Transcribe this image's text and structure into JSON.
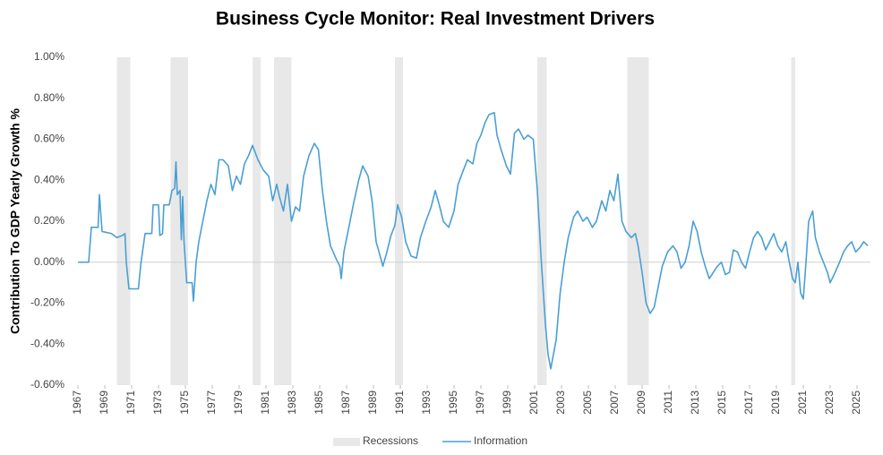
{
  "chart_data": {
    "type": "line",
    "title": "Business Cycle Monitor: Real Investment Drivers",
    "y_label": "Contribution To GDP Yearly Growth %",
    "xlim": [
      1967,
      2026
    ],
    "xticks": [
      1967,
      1969,
      1971,
      1973,
      1975,
      1977,
      1979,
      1981,
      1983,
      1985,
      1987,
      1989,
      1991,
      1993,
      1995,
      1997,
      1999,
      2001,
      2003,
      2005,
      2007,
      2009,
      2011,
      2013,
      2015,
      2017,
      2019,
      2021,
      2023,
      2025
    ],
    "ylim": [
      -0.6,
      1.0
    ],
    "yticks": [
      {
        "value": -0.6,
        "label": "-0.60%"
      },
      {
        "value": -0.4,
        "label": "-0.40%"
      },
      {
        "value": -0.2,
        "label": "-0.20%"
      },
      {
        "value": 0,
        "label": "0.00%"
      },
      {
        "value": 0.2,
        "label": "0.20%"
      },
      {
        "value": 0.4,
        "label": "0.40%"
      },
      {
        "value": 0.6,
        "label": "0.60%"
      },
      {
        "value": 0.8,
        "label": "0.80%"
      },
      {
        "value": 1.0,
        "label": "1.00%"
      }
    ],
    "legend": "bottom",
    "recessions": {
      "name": "Recessions",
      "color": "#e8e8e8",
      "spans": [
        [
          1969.9,
          1970.9
        ],
        [
          1973.9,
          1975.2
        ],
        [
          1980.0,
          1980.6
        ],
        [
          1981.6,
          1982.9
        ],
        [
          1990.6,
          1991.2
        ],
        [
          2001.2,
          2001.9
        ],
        [
          2007.9,
          2009.5
        ],
        [
          2020.1,
          2020.4
        ]
      ]
    },
    "x": [
      1967.0,
      1967.8,
      1968.0,
      1968.5,
      1968.6,
      1968.8,
      1969.5,
      1969.9,
      1970.3,
      1970.5,
      1970.6,
      1970.8,
      1971.5,
      1971.7,
      1972.0,
      1972.5,
      1972.6,
      1973.0,
      1973.1,
      1973.3,
      1973.4,
      1973.8,
      1974.0,
      1974.2,
      1974.3,
      1974.4,
      1974.6,
      1974.7,
      1974.8,
      1974.9,
      1975.1,
      1975.5,
      1975.6,
      1975.8,
      1976.0,
      1976.3,
      1976.6,
      1976.9,
      1977.2,
      1977.5,
      1977.8,
      1978.2,
      1978.5,
      1978.8,
      1979.1,
      1979.4,
      1979.7,
      1980.0,
      1980.4,
      1980.8,
      1981.2,
      1981.5,
      1981.8,
      1982.0,
      1982.3,
      1982.6,
      1982.9,
      1983.2,
      1983.5,
      1983.8,
      1984.2,
      1984.6,
      1984.9,
      1985.2,
      1985.5,
      1985.8,
      1986.2,
      1986.5,
      1986.6,
      1986.8,
      1987.2,
      1987.5,
      1987.9,
      1988.2,
      1988.6,
      1988.9,
      1989.2,
      1989.5,
      1989.7,
      1990.0,
      1990.3,
      1990.6,
      1990.8,
      1991.1,
      1991.4,
      1991.8,
      1992.2,
      1992.5,
      1992.9,
      1993.3,
      1993.6,
      1993.9,
      1994.2,
      1994.6,
      1995.0,
      1995.3,
      1995.7,
      1996.0,
      1996.4,
      1996.7,
      1997.0,
      1997.3,
      1997.6,
      1998.0,
      1998.2,
      1998.5,
      1998.9,
      1999.2,
      1999.5,
      1999.8,
      2000.2,
      2000.5,
      2000.9,
      2001.2,
      2001.5,
      2001.8,
      2002.0,
      2002.2,
      2002.6,
      2002.9,
      2003.2,
      2003.5,
      2003.9,
      2004.2,
      2004.6,
      2004.9,
      2005.3,
      2005.6,
      2006.0,
      2006.3,
      2006.6,
      2006.9,
      2007.2,
      2007.5,
      2007.8,
      2008.2,
      2008.5,
      2008.7,
      2009.0,
      2009.3,
      2009.6,
      2009.9,
      2010.2,
      2010.5,
      2010.9,
      2011.3,
      2011.6,
      2011.9,
      2012.2,
      2012.5,
      2012.8,
      2013.1,
      2013.4,
      2013.7,
      2014.0,
      2014.3,
      2014.6,
      2014.9,
      2015.2,
      2015.5,
      2015.8,
      2016.1,
      2016.4,
      2016.7,
      2017.0,
      2017.3,
      2017.6,
      2017.9,
      2018.2,
      2018.5,
      2018.8,
      2019.1,
      2019.4,
      2019.7,
      2019.9,
      2020.2,
      2020.4,
      2020.6,
      2020.8,
      2021.0,
      2021.2,
      2021.4,
      2021.7,
      2021.9,
      2022.2,
      2022.5,
      2022.8,
      2023.0,
      2023.3,
      2023.7,
      2024.0,
      2024.3,
      2024.6,
      2024.9,
      2025.2,
      2025.5,
      2025.8
    ],
    "series": [
      {
        "name": "Information",
        "color": "#4a9fd4",
        "values": [
          0,
          0,
          0.17,
          0.17,
          0.33,
          0.15,
          0.14,
          0.12,
          0.13,
          0.14,
          0.0,
          -0.13,
          -0.13,
          0.0,
          0.14,
          0.14,
          0.28,
          0.28,
          0.13,
          0.14,
          0.28,
          0.28,
          0.35,
          0.36,
          0.49,
          0.33,
          0.35,
          0.11,
          0.32,
          0.1,
          -0.1,
          -0.1,
          -0.19,
          0.0,
          0.1,
          0.2,
          0.3,
          0.38,
          0.33,
          0.5,
          0.5,
          0.47,
          0.35,
          0.42,
          0.38,
          0.48,
          0.52,
          0.57,
          0.5,
          0.45,
          0.42,
          0.3,
          0.38,
          0.32,
          0.25,
          0.38,
          0.2,
          0.27,
          0.25,
          0.42,
          0.52,
          0.58,
          0.55,
          0.35,
          0.2,
          0.08,
          0.02,
          -0.02,
          -0.08,
          0.05,
          0.18,
          0.28,
          0.4,
          0.47,
          0.42,
          0.3,
          0.1,
          0.03,
          -0.02,
          0.05,
          0.13,
          0.18,
          0.28,
          0.22,
          0.1,
          0.03,
          0.02,
          0.12,
          0.2,
          0.27,
          0.35,
          0.28,
          0.2,
          0.17,
          0.25,
          0.38,
          0.45,
          0.5,
          0.48,
          0.58,
          0.62,
          0.68,
          0.72,
          0.73,
          0.62,
          0.55,
          0.47,
          0.43,
          0.63,
          0.65,
          0.6,
          0.62,
          0.6,
          0.35,
          0.0,
          -0.3,
          -0.45,
          -0.52,
          -0.38,
          -0.15,
          0.0,
          0.12,
          0.22,
          0.25,
          0.2,
          0.22,
          0.17,
          0.2,
          0.3,
          0.25,
          0.35,
          0.3,
          0.43,
          0.2,
          0.15,
          0.12,
          0.14,
          0.08,
          -0.05,
          -0.2,
          -0.25,
          -0.22,
          -0.12,
          -0.02,
          0.05,
          0.08,
          0.05,
          -0.03,
          0.0,
          0.08,
          0.2,
          0.15,
          0.05,
          -0.02,
          -0.08,
          -0.05,
          -0.02,
          0.0,
          -0.06,
          -0.05,
          0.06,
          0.05,
          0.0,
          -0.03,
          0.05,
          0.12,
          0.15,
          0.12,
          0.06,
          0.1,
          0.14,
          0.08,
          0.05,
          0.1,
          0.02,
          -0.08,
          -0.1,
          0.0,
          -0.15,
          -0.18,
          0.0,
          0.2,
          0.25,
          0.12,
          0.05,
          0.0,
          -0.05,
          -0.1,
          -0.06,
          0.0,
          0.05,
          0.08,
          0.1,
          0.05,
          0.07,
          0.1,
          0.08
        ]
      }
    ]
  }
}
